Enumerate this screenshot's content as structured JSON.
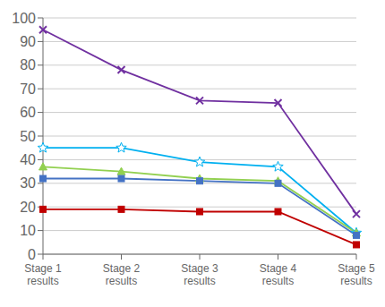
{
  "chart_data": {
    "type": "line",
    "categories": [
      "Stage 1\nresults",
      "Stage 2\nresults",
      "Stage 3\nresults",
      "Stage 4\nresults",
      "Stage 5\nresults"
    ],
    "series": [
      {
        "color": "#7030A0",
        "marker": "x",
        "values": [
          95,
          78,
          65,
          64,
          17
        ]
      },
      {
        "color": "#00B0F0",
        "marker": "star",
        "values": [
          45,
          45,
          39,
          37,
          9
        ]
      },
      {
        "color": "#92D050",
        "marker": "triangle",
        "values": [
          37,
          35,
          32,
          31,
          9
        ]
      },
      {
        "color": "#4472C4",
        "marker": "square",
        "values": [
          32,
          32,
          31,
          30,
          8
        ]
      },
      {
        "color": "#C00000",
        "marker": "square",
        "values": [
          19,
          19,
          18,
          18,
          4
        ]
      }
    ],
    "ylim": [
      0,
      100
    ],
    "yticks": [
      0,
      10,
      20,
      30,
      40,
      50,
      60,
      70,
      80,
      90,
      100
    ],
    "grid": true
  }
}
